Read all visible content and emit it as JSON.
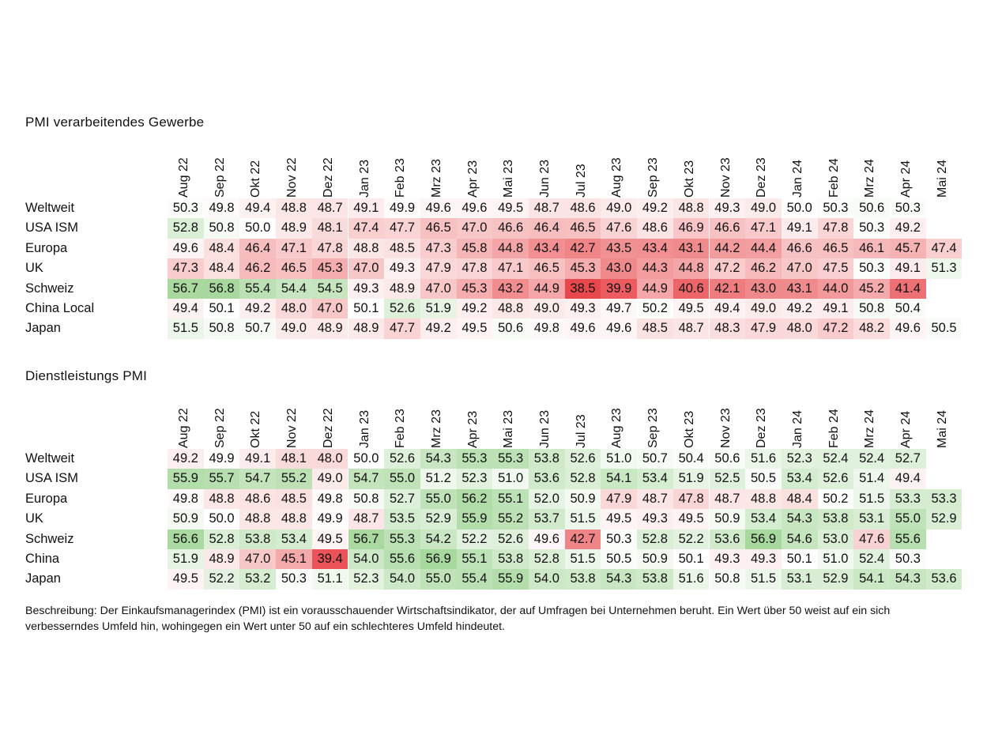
{
  "months": [
    "Aug 22",
    "Sep 22",
    "Okt 22",
    "Nov 22",
    "Dez 22",
    "Jan 23",
    "Feb 23",
    "Mrz 23",
    "Apr 23",
    "Mai 23",
    "Jun 23",
    "Jul 23",
    "Aug 23",
    "Sep 23",
    "Okt 23",
    "Nov 23",
    "Dez 23",
    "Jan 24",
    "Feb 24",
    "Mrz 24",
    "Apr 24",
    "Mai 24"
  ],
  "colors": {
    "low": "#e8474b",
    "mid": "#ffffff",
    "high": "#a6d79c"
  },
  "chart_data": [
    {
      "type": "heatmap",
      "title": "PMI verarbeitendes Gewerbe",
      "columns": [
        "Aug 22",
        "Sep 22",
        "Okt 22",
        "Nov 22",
        "Dez 22",
        "Jan 23",
        "Feb 23",
        "Mrz 23",
        "Apr 23",
        "Mai 23",
        "Jun 23",
        "Jul 23",
        "Aug 23",
        "Sep 23",
        "Okt 23",
        "Nov 23",
        "Dez 23",
        "Jan 24",
        "Feb 24",
        "Mrz 24",
        "Apr 24",
        "Mai 24"
      ],
      "midpoint": 50,
      "rows": [
        {
          "name": "Weltweit",
          "values": [
            50.3,
            49.8,
            49.4,
            48.8,
            48.7,
            49.1,
            49.9,
            49.6,
            49.6,
            49.5,
            48.7,
            48.6,
            49.0,
            49.2,
            48.8,
            49.3,
            49.0,
            50.0,
            50.3,
            50.6,
            50.3,
            null
          ]
        },
        {
          "name": "USA ISM",
          "values": [
            52.8,
            50.8,
            50.0,
            48.9,
            48.1,
            47.4,
            47.7,
            46.5,
            47.0,
            46.6,
            46.4,
            46.5,
            47.6,
            48.6,
            46.9,
            46.6,
            47.1,
            49.1,
            47.8,
            50.3,
            49.2,
            null
          ]
        },
        {
          "name": "Europa",
          "values": [
            49.6,
            48.4,
            46.4,
            47.1,
            47.8,
            48.8,
            48.5,
            47.3,
            45.8,
            44.8,
            43.4,
            42.7,
            43.5,
            43.4,
            43.1,
            44.2,
            44.4,
            46.6,
            46.5,
            46.1,
            45.7,
            47.4
          ]
        },
        {
          "name": "UK",
          "values": [
            47.3,
            48.4,
            46.2,
            46.5,
            45.3,
            47.0,
            49.3,
            47.9,
            47.8,
            47.1,
            46.5,
            45.3,
            43.0,
            44.3,
            44.8,
            47.2,
            46.2,
            47.0,
            47.5,
            50.3,
            49.1,
            51.3
          ]
        },
        {
          "name": "Schweiz",
          "values": [
            56.7,
            56.8,
            55.4,
            54.4,
            54.5,
            49.3,
            48.9,
            47.0,
            45.3,
            43.2,
            44.9,
            38.5,
            39.9,
            44.9,
            40.6,
            42.1,
            43.0,
            43.1,
            44.0,
            45.2,
            41.4,
            null
          ]
        },
        {
          "name": "China Local",
          "values": [
            49.4,
            50.1,
            49.2,
            48.0,
            47.0,
            50.1,
            52.6,
            51.9,
            49.2,
            48.8,
            49.0,
            49.3,
            49.7,
            50.2,
            49.5,
            49.4,
            49.0,
            49.2,
            49.1,
            50.8,
            50.4,
            null
          ]
        },
        {
          "name": "Japan",
          "values": [
            51.5,
            50.8,
            50.7,
            49.0,
            48.9,
            48.9,
            47.7,
            49.2,
            49.5,
            50.6,
            49.8,
            49.6,
            49.6,
            48.5,
            48.7,
            48.3,
            47.9,
            48.0,
            47.2,
            48.2,
            49.6,
            50.5
          ]
        }
      ]
    },
    {
      "type": "heatmap",
      "title": "Dienstleistungs PMI",
      "columns": [
        "Aug 22",
        "Sep 22",
        "Okt 22",
        "Nov 22",
        "Dez 22",
        "Jan 23",
        "Feb 23",
        "Mrz 23",
        "Apr 23",
        "Mai 23",
        "Jun 23",
        "Jul 23",
        "Aug 23",
        "Sep 23",
        "Okt 23",
        "Nov 23",
        "Dez 23",
        "Jan 24",
        "Feb 24",
        "Mrz 24",
        "Apr 24",
        "Mai 24"
      ],
      "midpoint": 50,
      "rows": [
        {
          "name": "Weltweit",
          "values": [
            49.2,
            49.9,
            49.1,
            48.1,
            48.0,
            50.0,
            52.6,
            54.3,
            55.3,
            55.3,
            53.8,
            52.6,
            51.0,
            50.7,
            50.4,
            50.6,
            51.6,
            52.3,
            52.4,
            52.4,
            52.7,
            null
          ]
        },
        {
          "name": "USA ISM",
          "values": [
            55.9,
            55.7,
            54.7,
            55.2,
            49.0,
            54.7,
            55.0,
            51.2,
            52.3,
            51.0,
            53.6,
            52.8,
            54.1,
            53.4,
            51.9,
            52.5,
            50.5,
            53.4,
            52.6,
            51.4,
            49.4,
            null
          ]
        },
        {
          "name": "Europa",
          "values": [
            49.8,
            48.8,
            48.6,
            48.5,
            49.8,
            50.8,
            52.7,
            55.0,
            56.2,
            55.1,
            52.0,
            50.9,
            47.9,
            48.7,
            47.8,
            48.7,
            48.8,
            48.4,
            50.2,
            51.5,
            53.3,
            53.3
          ]
        },
        {
          "name": "UK",
          "values": [
            50.9,
            50.0,
            48.8,
            48.8,
            49.9,
            48.7,
            53.5,
            52.9,
            55.9,
            55.2,
            53.7,
            51.5,
            49.5,
            49.3,
            49.5,
            50.9,
            53.4,
            54.3,
            53.8,
            53.1,
            55.0,
            52.9
          ]
        },
        {
          "name": "Schweiz",
          "values": [
            56.6,
            52.8,
            53.8,
            53.4,
            49.5,
            56.7,
            55.3,
            54.2,
            52.2,
            52.6,
            49.6,
            42.7,
            50.3,
            52.8,
            52.2,
            53.6,
            56.9,
            54.6,
            53.0,
            47.6,
            55.6,
            null
          ]
        },
        {
          "name": "China",
          "values": [
            51.9,
            48.9,
            47.0,
            45.1,
            39.4,
            54.0,
            55.6,
            56.9,
            55.1,
            53.8,
            52.8,
            51.5,
            50.5,
            50.9,
            50.1,
            49.3,
            49.3,
            50.1,
            51.0,
            52.4,
            50.3,
            null
          ]
        },
        {
          "name": "Japan",
          "values": [
            49.5,
            52.2,
            53.2,
            50.3,
            51.1,
            52.3,
            54.0,
            55.0,
            55.4,
            55.9,
            54.0,
            53.8,
            54.3,
            53.8,
            51.6,
            50.8,
            51.5,
            53.1,
            52.9,
            54.1,
            54.3,
            53.6
          ]
        }
      ]
    }
  ],
  "description": "Beschreibung: Der Einkaufsmanagerindex (PMI) ist ein vorausschauender Wirtschaftsindikator, der auf Umfragen bei Unternehmen beruht. Ein Wert über 50 weist auf ein sich verbesserndes Umfeld hin, wohingegen ein Wert unter 50 auf ein schlechteres Umfeld hindeutet."
}
